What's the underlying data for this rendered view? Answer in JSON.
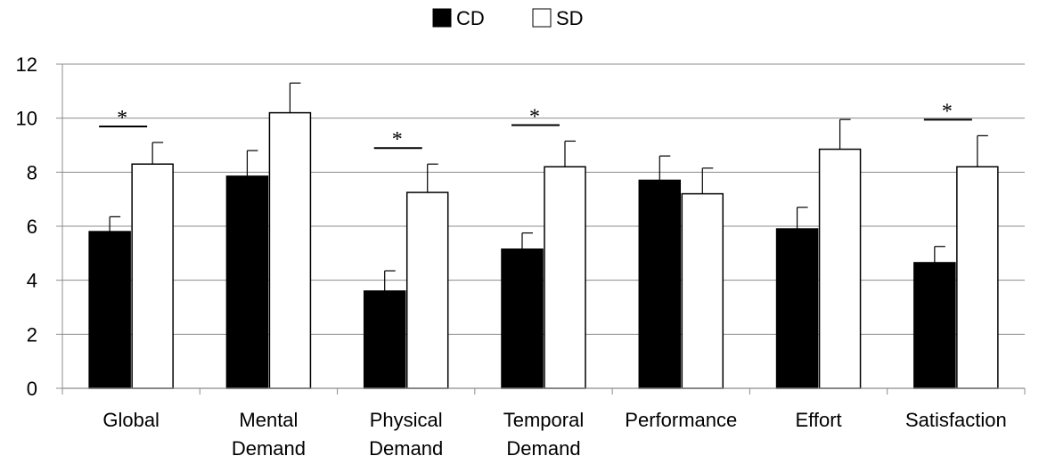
{
  "chart_data": {
    "type": "bar",
    "categories": [
      [
        "Global"
      ],
      [
        "Mental",
        "Demand"
      ],
      [
        "Physical",
        "Demand"
      ],
      [
        "Temporal",
        "Demand"
      ],
      [
        "Performance"
      ],
      [
        "Effort"
      ],
      [
        "Satisfaction"
      ]
    ],
    "series": [
      {
        "name": "CD",
        "color": "#000000",
        "values": [
          5.8,
          7.85,
          3.6,
          5.15,
          7.7,
          5.9,
          4.65
        ],
        "errors": [
          0.55,
          0.95,
          0.75,
          0.6,
          0.9,
          0.8,
          0.6
        ]
      },
      {
        "name": "SD",
        "color": "#ffffff",
        "values": [
          8.3,
          10.2,
          7.25,
          8.2,
          7.2,
          8.85,
          8.2
        ],
        "errors": [
          0.8,
          1.1,
          1.05,
          0.95,
          0.95,
          1.1,
          1.15
        ]
      }
    ],
    "yticks": [
      0,
      2,
      4,
      6,
      8,
      10,
      12
    ],
    "ylim": [
      0,
      12
    ],
    "grid": true,
    "legend_position": "top-center",
    "significance": [
      {
        "category_index": 0,
        "label": "*"
      },
      {
        "category_index": 2,
        "label": "*"
      },
      {
        "category_index": 3,
        "label": "*"
      },
      {
        "category_index": 6,
        "label": "*"
      }
    ]
  }
}
